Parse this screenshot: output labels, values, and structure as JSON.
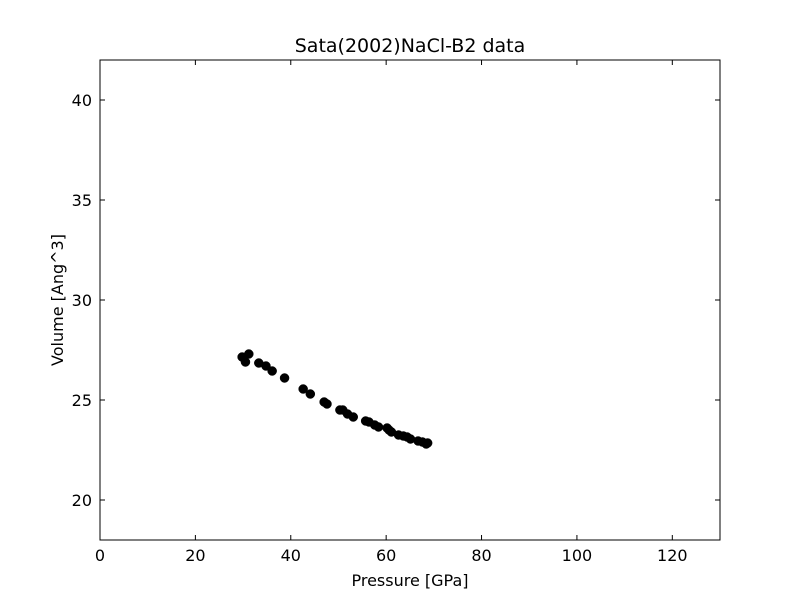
{
  "chart_data": {
    "type": "scatter",
    "title": "Sata(2002)NaCl-B2 data",
    "xlabel": "Pressure [GPa]",
    "ylabel": "Volume [Ang^3]",
    "xlim": [
      0,
      130
    ],
    "ylim": [
      18,
      42
    ],
    "xticks": [
      0,
      20,
      40,
      60,
      80,
      100,
      120
    ],
    "yticks": [
      20,
      25,
      30,
      35,
      40
    ],
    "grid": false,
    "marker_color": "#000000",
    "series": [
      {
        "points": [
          [
            29.8,
            27.15
          ],
          [
            30.5,
            26.9
          ],
          [
            31.2,
            27.3
          ],
          [
            33.3,
            26.85
          ],
          [
            34.8,
            26.7
          ],
          [
            36.1,
            26.45
          ],
          [
            38.7,
            26.1
          ],
          [
            42.6,
            25.55
          ],
          [
            44.1,
            25.3
          ],
          [
            47.0,
            24.9
          ],
          [
            47.6,
            24.8
          ],
          [
            50.3,
            24.5
          ],
          [
            50.9,
            24.5
          ],
          [
            51.9,
            24.3
          ],
          [
            53.1,
            24.15
          ],
          [
            55.7,
            23.95
          ],
          [
            56.4,
            23.9
          ],
          [
            57.6,
            23.75
          ],
          [
            58.4,
            23.65
          ],
          [
            60.2,
            23.6
          ],
          [
            60.6,
            23.5
          ],
          [
            61.1,
            23.4
          ],
          [
            62.6,
            23.25
          ],
          [
            63.6,
            23.2
          ],
          [
            64.4,
            23.15
          ],
          [
            65.1,
            23.05
          ],
          [
            66.7,
            22.95
          ],
          [
            67.6,
            22.9
          ],
          [
            68.4,
            22.8
          ],
          [
            68.7,
            22.85
          ]
        ]
      }
    ]
  }
}
